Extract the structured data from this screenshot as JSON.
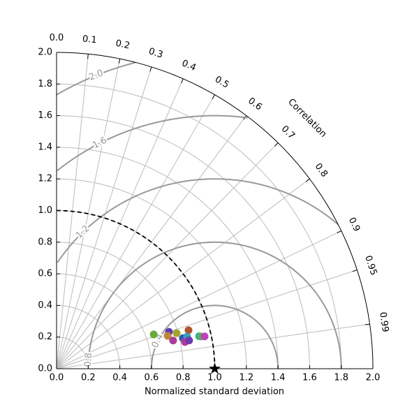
{
  "chart_data": {
    "type": "taylor",
    "x_label": "Normalized standard deviation",
    "correlation_label": "Correlation",
    "xlim": [
      0,
      2
    ],
    "xticks": [
      {
        "value": 0,
        "label": "0.0"
      },
      0.2,
      0.4,
      0.6,
      0.8,
      {
        "value": 1,
        "label": "1.0"
      },
      1.2,
      1.4,
      1.6,
      1.8,
      {
        "value": 2,
        "label": "2.0"
      }
    ],
    "ylim": [
      0,
      2
    ],
    "yticks": [
      {
        "value": 0,
        "label": "0.0"
      },
      0.2,
      0.4,
      0.6,
      0.8,
      {
        "value": 1,
        "label": "1.0"
      },
      1.2,
      1.4,
      1.6,
      1.8,
      {
        "value": 2,
        "label": "2.0"
      }
    ],
    "correlation_ticks": [
      {
        "value": 0,
        "label": "0.0"
      },
      0.1,
      0.2,
      0.3,
      0.4,
      0.5,
      0.6,
      0.7,
      0.8,
      0.9,
      0.95,
      0.99
    ],
    "rms_levels": [
      0.4,
      0.8,
      1.2,
      1.6,
      {
        "value": 2,
        "label": "2.0"
      }
    ],
    "reference_std": 1,
    "grid": true,
    "points": {
      "std": [
        0.651,
        0.748,
        0.732,
        0.792,
        0.758,
        0.869,
        0.822,
        0.85,
        0.829,
        0.857,
        0.924,
        0.936,
        0.958
      ],
      "correlation": [
        0.943,
        0.95,
        0.959,
        0.959,
        0.972,
        0.96,
        0.972,
        0.971,
        0.979,
        0.978,
        0.975,
        0.976,
        0.977
      ],
      "colors": [
        "#6aaa3a",
        "#5a3fb0",
        "#c0843c",
        "#a4a42c",
        "#a83e98",
        "#b0542e",
        "#2f55b5",
        "#3a9fb8",
        "#b03a9e",
        "#6a3ab0",
        "#3ab0a0",
        "#5ab05a",
        "#c040c0"
      ]
    }
  }
}
